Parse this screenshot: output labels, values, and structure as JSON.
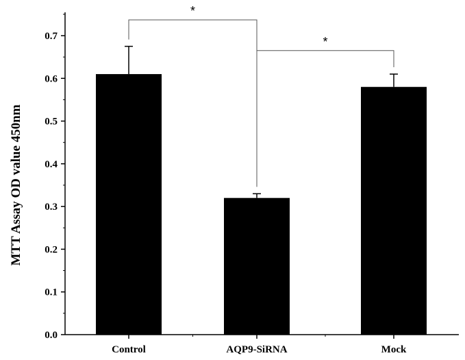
{
  "chart_data": {
    "type": "bar",
    "title": "",
    "xlabel": "",
    "ylabel": "MTT Assay OD value 450nm",
    "categories": [
      "Control",
      "AQP9-SiRNA",
      "Mock"
    ],
    "values": [
      0.61,
      0.32,
      0.58
    ],
    "errors": [
      0.065,
      0.01,
      0.03
    ],
    "ylim": [
      0,
      0.75
    ],
    "yticks": [
      "0.0",
      "0.1",
      "0.2",
      "0.3",
      "0.4",
      "0.5",
      "0.6",
      "0.7"
    ],
    "bar_color": "#000000",
    "grid": false,
    "significance": [
      {
        "from": 0,
        "to": 1,
        "label": "*",
        "y": 0.737
      },
      {
        "from": 1,
        "to": 2,
        "label": "*",
        "y": 0.665
      }
    ]
  }
}
